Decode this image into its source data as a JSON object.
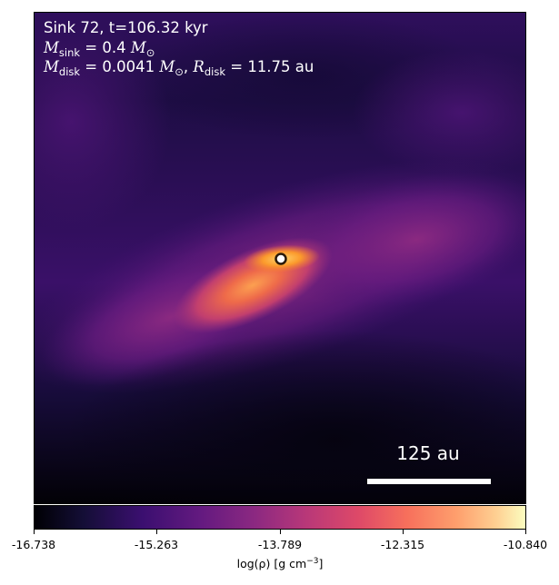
{
  "header": {
    "line1": "Sink 72, t=106.32 kyr",
    "msink_symbol": "M",
    "msink_sub": "sink",
    "msink_value": " = 0.4 ",
    "mdisk_symbol": "M",
    "mdisk_sub": "disk",
    "mdisk_value": " = 0.0041 ",
    "sun_symbol": "M",
    "sun_sub": "⊙",
    "rdisk_sep": ", ",
    "rdisk_symbol": "R",
    "rdisk_sub": "disk",
    "rdisk_value": " = 11.75 au"
  },
  "scalebar": {
    "label": "125 au"
  },
  "colorbar": {
    "ticks": [
      "-16.738",
      "-15.263",
      "-13.789",
      "-12.315",
      "-10.840"
    ],
    "label_main": "log(ρ) [g cm",
    "label_exp": "−3",
    "label_close": "]"
  }
}
